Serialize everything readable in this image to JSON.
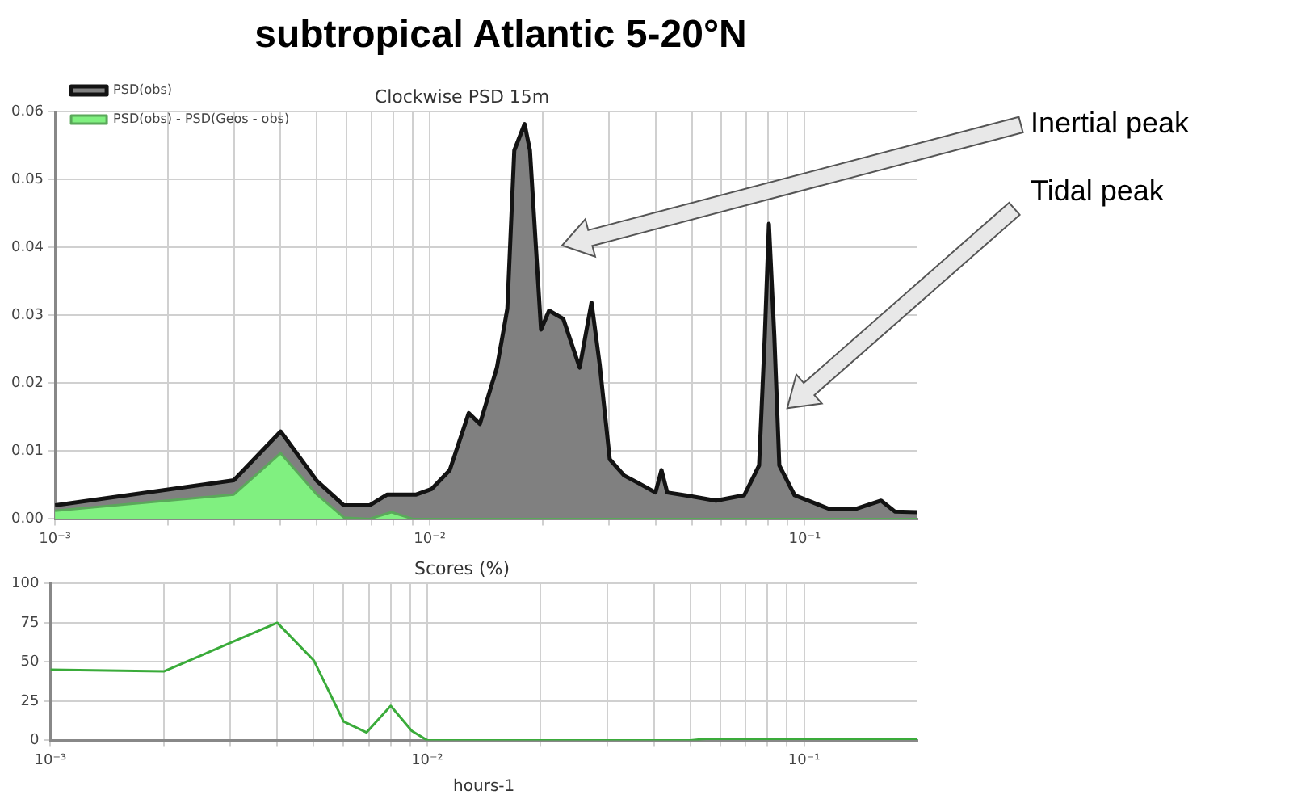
{
  "chart_data": [
    {
      "type": "area",
      "title": "subtropical Atlantic 5-20°N",
      "subtitle": "Clockwise PSD 15m",
      "log": "x",
      "grid": true,
      "legend": "top left",
      "xlim": [
        0.001,
        0.2
      ],
      "xticks": [
        {
          "value": 0.001,
          "label": "10⁻³"
        },
        {
          "value": 0.002,
          "label": null
        },
        {
          "value": 0.003,
          "label": null
        },
        {
          "value": 0.004,
          "label": null
        },
        {
          "value": 0.005,
          "label": null
        },
        {
          "value": 0.006,
          "label": null
        },
        {
          "value": 0.007,
          "label": null
        },
        {
          "value": 0.008,
          "label": null
        },
        {
          "value": 0.009,
          "label": null
        },
        {
          "value": 0.01,
          "label": "10⁻²"
        },
        {
          "value": 0.02,
          "label": null
        },
        {
          "value": 0.03,
          "label": null
        },
        {
          "value": 0.04,
          "label": null
        },
        {
          "value": 0.05,
          "label": null
        },
        {
          "value": 0.06,
          "label": null
        },
        {
          "value": 0.07,
          "label": null
        },
        {
          "value": 0.08,
          "label": null
        },
        {
          "value": 0.09,
          "label": null
        },
        {
          "value": 0.1,
          "label": "10⁻¹"
        }
      ],
      "ylim": [
        0,
        0.06
      ],
      "yticks": [
        {
          "value": 0,
          "label": "0.00"
        },
        {
          "value": 0.01,
          "label": "0.01"
        },
        {
          "value": 0.02,
          "label": "0.02"
        },
        {
          "value": 0.03,
          "label": "0.03"
        },
        {
          "value": 0.04,
          "label": "0.04"
        },
        {
          "value": 0.05,
          "label": "0.05"
        },
        {
          "value": 0.06,
          "label": "0.06"
        }
      ],
      "series": [
        {
          "name": "PSD(obs)",
          "color": "#808080",
          "x": [
            0.001,
            0.003,
            0.004,
            0.005,
            0.0059,
            0.0069,
            0.0077,
            0.0092,
            0.0101,
            0.0113,
            0.0127,
            0.0136,
            0.0151,
            0.0161,
            0.0168,
            0.0179,
            0.0185,
            0.0198,
            0.0208,
            0.0227,
            0.0251,
            0.027,
            0.0284,
            0.0302,
            0.033,
            0.036,
            0.04,
            0.0415,
            0.043,
            0.049,
            0.058,
            0.069,
            0.0756,
            0.0783,
            0.0803,
            0.083,
            0.0856,
            0.094,
            0.116,
            0.137,
            0.16,
            0.174,
            0.2
          ],
          "values": [
            0.002,
            0.0057,
            0.0129,
            0.0056,
            0.002,
            0.002,
            0.0036,
            0.0036,
            0.0044,
            0.0072,
            0.0156,
            0.014,
            0.0223,
            0.031,
            0.0543,
            0.0582,
            0.0543,
            0.0279,
            0.0307,
            0.0295,
            0.0223,
            0.0319,
            0.0227,
            0.0088,
            0.0064,
            0.0053,
            0.0039,
            0.0072,
            0.0039,
            0.0034,
            0.0027,
            0.0035,
            0.0079,
            0.027,
            0.0435,
            0.027,
            0.0079,
            0.0035,
            0.0015,
            0.0015,
            0.0027,
            0.0011,
            0.001
          ]
        },
        {
          "name": "PSD(obs) - PSD(Geos - obs)",
          "color": "#80f080",
          "x": [
            0.001,
            0.003,
            0.004,
            0.005,
            0.0059,
            0.0069,
            0.0079,
            0.009,
            0.2
          ],
          "values": [
            0.0012,
            0.0036,
            0.0097,
            0.0036,
            0.0002,
            0,
            0.001,
            0,
            0
          ]
        }
      ],
      "annotations": [
        "Inertial peak",
        "Tidal peak"
      ]
    },
    {
      "type": "line",
      "title": "Scores (%)",
      "xlabel": "hours-1",
      "log": "x",
      "grid": true,
      "xlim": [
        0.001,
        0.2
      ],
      "xticks": [
        {
          "value": 0.001,
          "label": "10⁻³"
        },
        {
          "value": 0.002,
          "label": null
        },
        {
          "value": 0.003,
          "label": null
        },
        {
          "value": 0.004,
          "label": null
        },
        {
          "value": 0.005,
          "label": null
        },
        {
          "value": 0.006,
          "label": null
        },
        {
          "value": 0.007,
          "label": null
        },
        {
          "value": 0.008,
          "label": null
        },
        {
          "value": 0.009,
          "label": null
        },
        {
          "value": 0.01,
          "label": "10⁻²"
        },
        {
          "value": 0.02,
          "label": null
        },
        {
          "value": 0.03,
          "label": null
        },
        {
          "value": 0.04,
          "label": null
        },
        {
          "value": 0.05,
          "label": null
        },
        {
          "value": 0.06,
          "label": null
        },
        {
          "value": 0.07,
          "label": null
        },
        {
          "value": 0.08,
          "label": null
        },
        {
          "value": 0.09,
          "label": null
        },
        {
          "value": 0.1,
          "label": "10⁻¹"
        }
      ],
      "ylim": [
        0,
        100
      ],
      "yticks": [
        0,
        25,
        50,
        75,
        100
      ],
      "series": [
        {
          "color": "#3aab3a",
          "x": [
            0.001,
            0.002,
            0.004,
            0.005,
            0.006,
            0.0069,
            0.008,
            0.0091,
            0.01,
            0.05,
            0.055,
            0.2
          ],
          "values": [
            45,
            44,
            75,
            51,
            12,
            5,
            22,
            6,
            0,
            0,
            1,
            1
          ]
        }
      ]
    }
  ]
}
